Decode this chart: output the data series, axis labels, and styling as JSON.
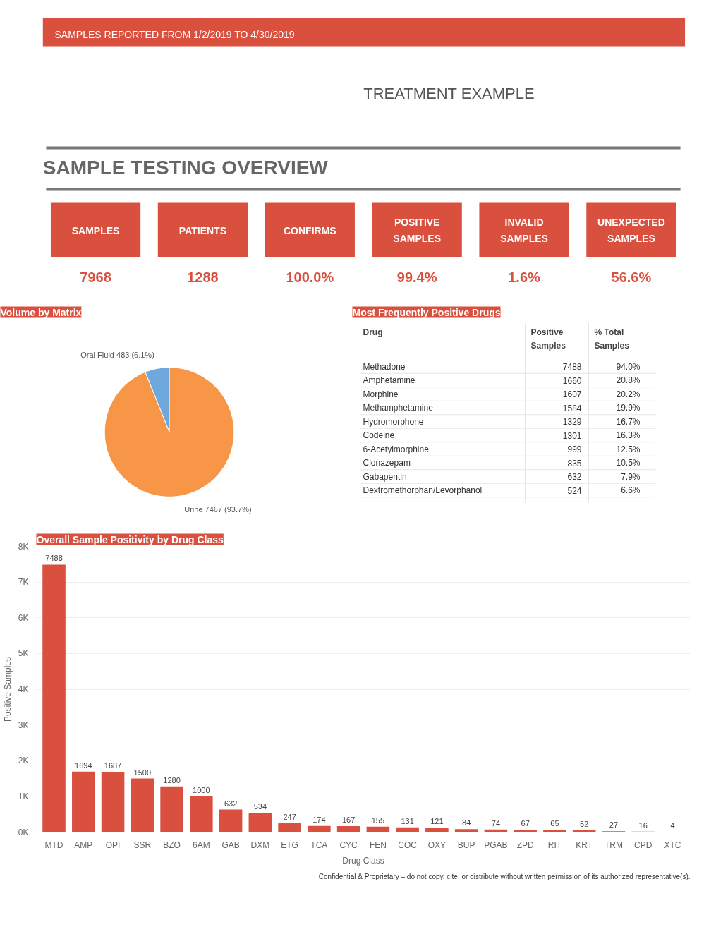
{
  "chart_data": [
    {
      "type": "other",
      "title": "SAMPLE TESTING OVERVIEW",
      "subtitle": "TREATMENT EXAMPLE",
      "annotations": [
        "SAMPLES REPORTED FROM 1/2/2019 TO 4/30/2019"
      ],
      "color": "#d9503f",
      "categories": [
        "SAMPLES",
        "PATIENTS",
        "CONFIRMS",
        "POSITIVE\nSAMPLES",
        "INVALID\nSAMPLES",
        "UNEXPECTED\nSAMPLES"
      ],
      "values": [
        7968,
        1288,
        100.0,
        99.4,
        1.6,
        56.6
      ],
      "value_labels": [
        "7968",
        "1288",
        "100.0%",
        "99.4%",
        "1.6%",
        "56.6%"
      ]
    },
    {
      "type": "pie",
      "title": "Volume by Matrix",
      "categories": [
        "Oral Fluid",
        "Urine"
      ],
      "values": [
        483,
        7467
      ],
      "colors": [
        "#6fa8dc",
        "#f79646"
      ],
      "value_labels": [
        "483 (6.1%)",
        "7467 (93.7%)"
      ]
    },
    {
      "type": "other",
      "title": "Most Frequently Positive Drugs",
      "xlabel": "Drug",
      "categories": [
        "Methadone",
        "Amphetamine",
        "Morphine",
        "Methamphetamine",
        "Hydromorphone",
        "Codeine",
        "6-Acetylmorphine",
        "Clonazepam",
        "Gabapentin",
        "Dextromethorphan/Levorphanol"
      ],
      "series": [
        {
          "name": "Positive Samples",
          "values": [
            7488,
            1660,
            1607,
            1584,
            1329,
            1301,
            999,
            835,
            632,
            524
          ],
          "value_labels": [
            "7488",
            "1660",
            "1607",
            "1584",
            "1329",
            "1301",
            "999",
            "835",
            "632",
            "524"
          ]
        },
        {
          "name": "% Total Samples",
          "values": [
            94.0,
            20.8,
            20.2,
            19.9,
            16.7,
            16.3,
            12.5,
            10.5,
            7.9,
            6.6
          ],
          "value_labels": [
            "94.0%",
            "20.8%",
            "20.2%",
            "19.9%",
            "16.7%",
            "16.3%",
            "12.5%",
            "10.5%",
            "7.9%",
            "6.6%"
          ]
        }
      ]
    },
    {
      "type": "bar",
      "title": "Overall Sample Positivity by Drug Class",
      "xlabel": "Drug Class",
      "ylabel": "Positive Samples",
      "color": "#d9503f",
      "categories": [
        "MTD",
        "AMP",
        "OPI",
        "SSR",
        "BZO",
        "6AM",
        "GAB",
        "DXM",
        "ETG",
        "TCA",
        "CYC",
        "FEN",
        "COC",
        "OXY",
        "BUP",
        "PGAB",
        "ZPD",
        "RIT",
        "KRT",
        "TRM",
        "CPD",
        "XTC"
      ],
      "values": [
        7488,
        1694,
        1687,
        1500,
        1280,
        1000,
        632,
        534,
        247,
        174,
        167,
        155,
        131,
        121,
        84,
        74,
        67,
        65,
        52,
        27,
        16,
        4
      ],
      "ylim": [
        0,
        8000
      ],
      "yticks": [
        {
          "value": 0,
          "label": "0K"
        },
        {
          "value": 1000,
          "label": "1K"
        },
        {
          "value": 2000,
          "label": "2K"
        },
        {
          "value": 3000,
          "label": "3K"
        },
        {
          "value": 4000,
          "label": "4K"
        },
        {
          "value": 5000,
          "label": "5K"
        },
        {
          "value": 6000,
          "label": "6K"
        },
        {
          "value": 7000,
          "label": "7K"
        },
        {
          "value": 8000,
          "label": "8K"
        }
      ],
      "grid": "y",
      "data_labels": true,
      "annotations": [
        "Confidential & Proprietary – do not copy, cite, or distribute without written permission of its authorized representative(s)."
      ]
    }
  ]
}
